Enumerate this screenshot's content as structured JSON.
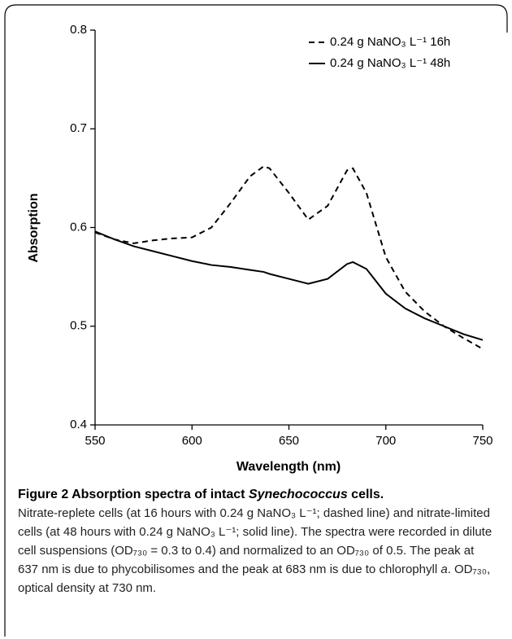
{
  "chart_data": {
    "type": "line",
    "x_label": "Wavelength (nm)",
    "y_label": "Absorption",
    "x": [
      550,
      560,
      570,
      580,
      590,
      600,
      610,
      620,
      630,
      637,
      640,
      650,
      660,
      670,
      680,
      683,
      690,
      700,
      710,
      720,
      730,
      740,
      750
    ],
    "series": [
      {
        "name": "0.24 g NaNO₃ L⁻¹ 16h",
        "color": "#000000",
        "linestyle": "dashed",
        "values": [
          0.595,
          0.588,
          0.584,
          0.587,
          0.589,
          0.59,
          0.6,
          0.625,
          0.652,
          0.662,
          0.66,
          0.635,
          0.608,
          0.622,
          0.658,
          0.66,
          0.635,
          0.57,
          0.535,
          0.515,
          0.5,
          0.488,
          0.477
        ]
      },
      {
        "name": "0.24 g NaNO₃ L⁻¹ 48h",
        "color": "#000000",
        "linestyle": "solid",
        "values": [
          0.596,
          0.588,
          0.581,
          0.576,
          0.571,
          0.566,
          0.562,
          0.56,
          0.557,
          0.555,
          0.553,
          0.548,
          0.543,
          0.548,
          0.563,
          0.565,
          0.558,
          0.533,
          0.518,
          0.508,
          0.5,
          0.492,
          0.486
        ]
      }
    ],
    "xlim": [
      550,
      750
    ],
    "xticks": [
      550,
      600,
      650,
      700,
      750
    ],
    "ylim": [
      0.4,
      0.8
    ],
    "yticks": [
      0.4,
      0.5,
      0.6,
      0.7,
      0.8
    ],
    "grid": false,
    "legend": "upper right"
  },
  "caption": {
    "title": [
      "Figure 2 Absorption spectra of intact ",
      "Synechococcus",
      " cells."
    ],
    "body": [
      "Nitrate-replete cells (at 16 hours with 0.24 g NaNO₃ L⁻¹; dashed line) and nitrate-limited cells (at 48 hours with 0.24 g NaNO₃ L⁻¹; solid line). The spectra were recorded in dilute cell suspensions (OD₇₃₀ = 0.3 to 0.4) and normalized to an OD₇₃₀ of 0.5. The peak at 637 nm is due to phycobilisomes and the peak at 683 nm is due to chlorophyll ",
      "a",
      ". OD₇₃₀, optical density at 730 nm."
    ]
  }
}
